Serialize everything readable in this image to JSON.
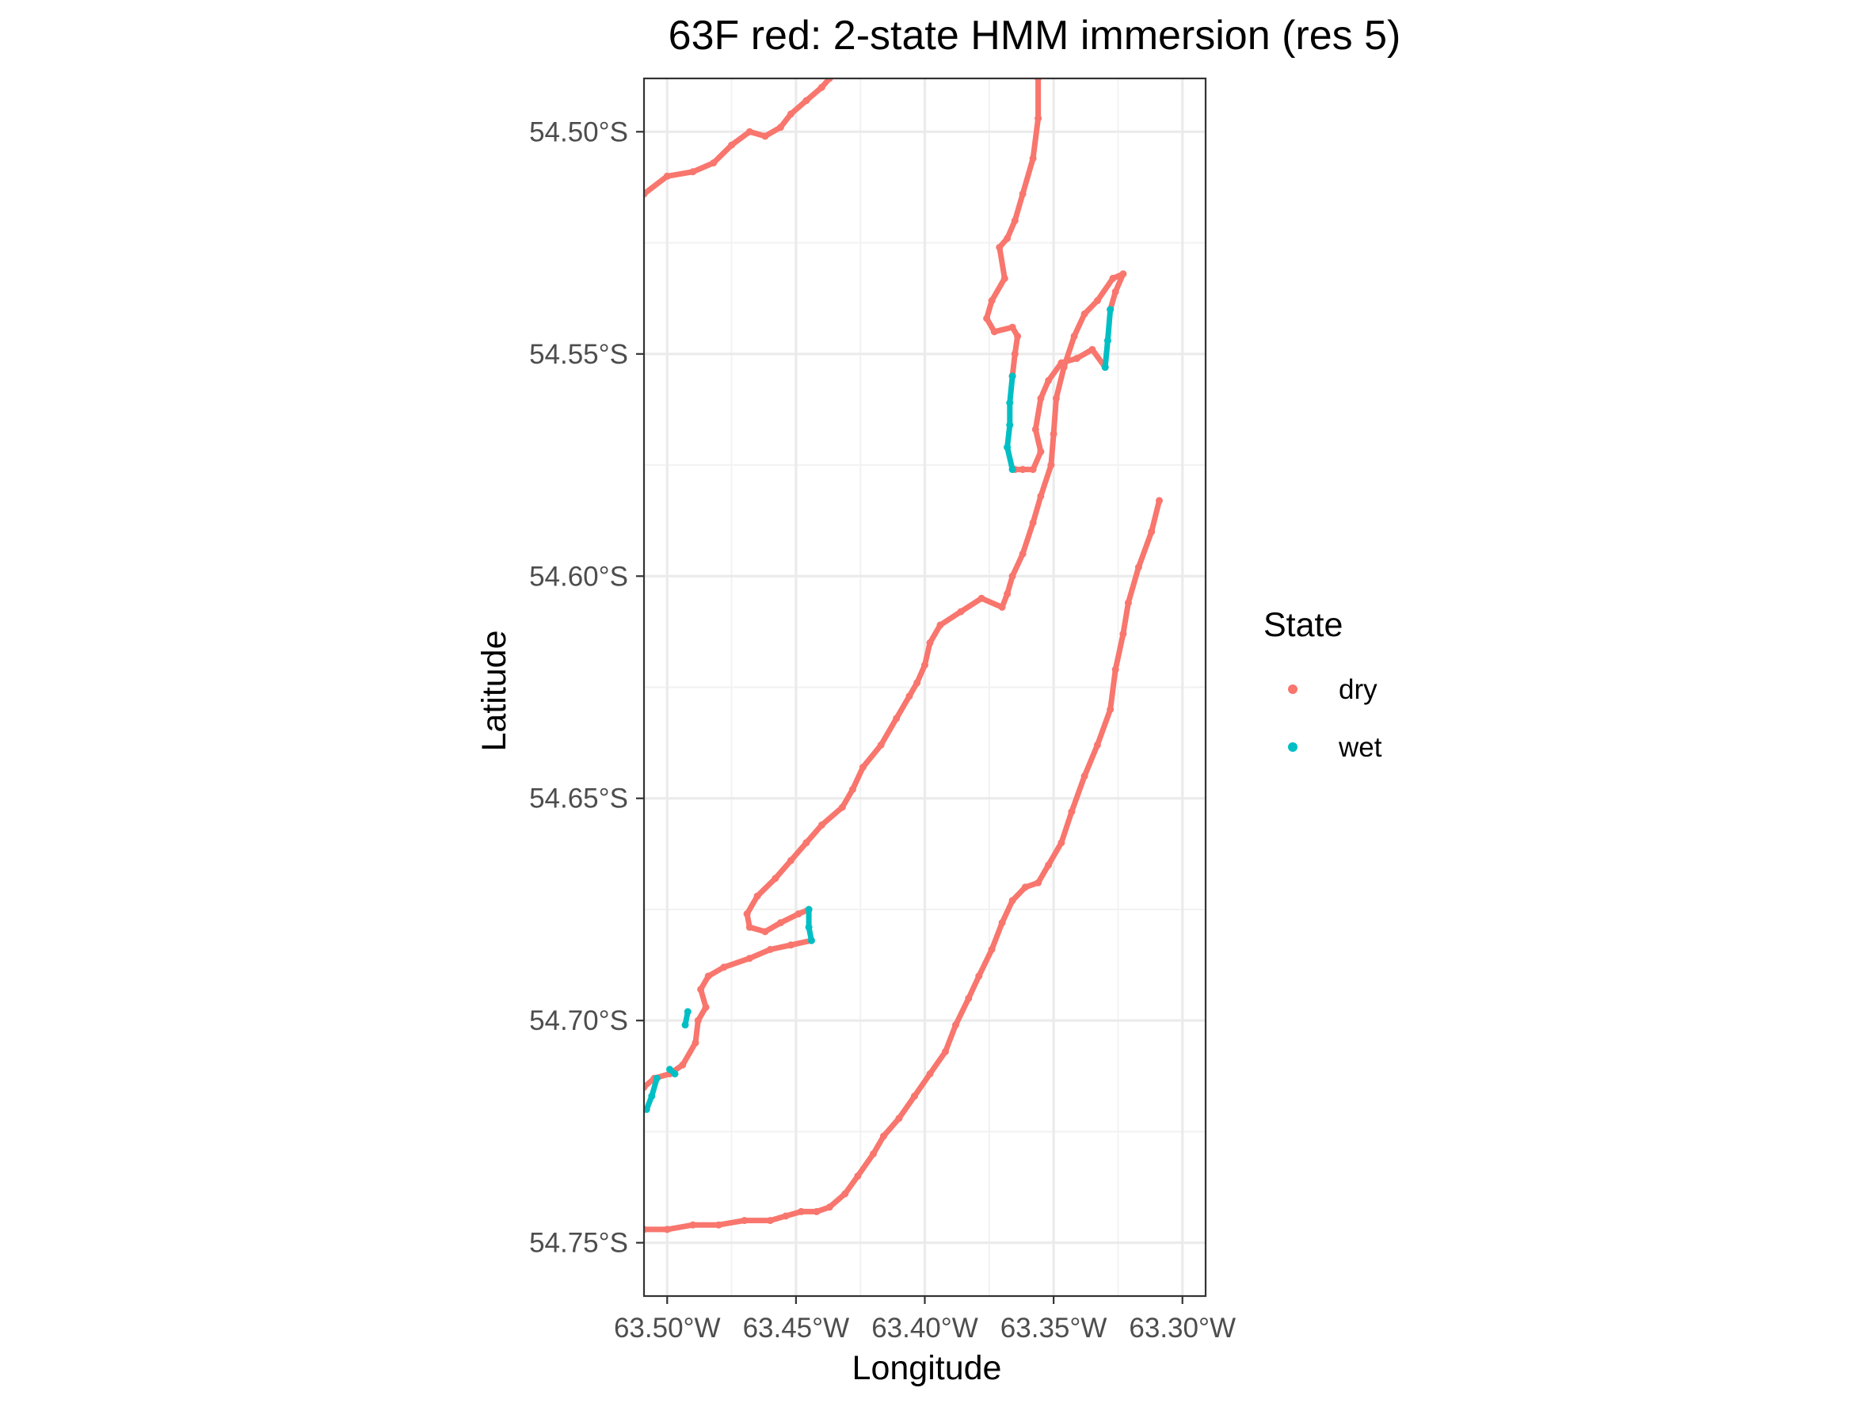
{
  "chart_data": {
    "type": "scatter",
    "title": "63F red: 2-state HMM immersion (res 5)",
    "xlabel": "Longitude",
    "ylabel": "Latitude",
    "xlim": [
      -63.509,
      -63.291
    ],
    "ylim": [
      -54.762,
      -54.488
    ],
    "x_ticks": [
      -63.5,
      -63.45,
      -63.4,
      -63.35,
      -63.3
    ],
    "x_tick_labels": [
      "63.50°W",
      "63.45°W",
      "63.40°W",
      "63.35°W",
      "63.30°W"
    ],
    "y_ticks": [
      -54.5,
      -54.55,
      -54.6,
      -54.65,
      -54.7,
      -54.75
    ],
    "y_tick_labels": [
      "54.50°S",
      "54.55°S",
      "54.60°S",
      "54.65°S",
      "54.70°S",
      "54.75°S"
    ],
    "grid": true,
    "legend": {
      "title": "State",
      "position": "right",
      "entries": [
        {
          "label": "dry",
          "color": "#F8766D"
        },
        {
          "label": "wet",
          "color": "#00BFC4"
        }
      ]
    },
    "series": [
      {
        "name": "dry",
        "color": "#F8766D",
        "segments": [
          [
            [
              -63.509,
              -54.514
            ],
            [
              -63.5,
              -54.51
            ],
            [
              -63.49,
              -54.509
            ],
            [
              -63.482,
              -54.507
            ],
            [
              -63.475,
              -54.503
            ],
            [
              -63.468,
              -54.5
            ],
            [
              -63.462,
              -54.501
            ],
            [
              -63.456,
              -54.499
            ],
            [
              -63.452,
              -54.496
            ],
            [
              -63.446,
              -54.493
            ],
            [
              -63.44,
              -54.49
            ],
            [
              -63.437,
              -54.488
            ]
          ],
          [
            [
              -63.356,
              -54.488
            ],
            [
              -63.356,
              -54.497
            ],
            [
              -63.358,
              -54.506
            ],
            [
              -63.362,
              -54.514
            ],
            [
              -63.365,
              -54.52
            ],
            [
              -63.368,
              -54.524
            ],
            [
              -63.371,
              -54.526
            ],
            [
              -63.369,
              -54.533
            ],
            [
              -63.374,
              -54.538
            ],
            [
              -63.376,
              -54.542
            ],
            [
              -63.373,
              -54.545
            ],
            [
              -63.366,
              -54.544
            ],
            [
              -63.364,
              -54.546
            ],
            [
              -63.365,
              -54.55
            ],
            [
              -63.366,
              -54.555
            ]
          ],
          [
            [
              -63.365,
              -54.576
            ],
            [
              -63.362,
              -54.576
            ],
            [
              -63.358,
              -54.576
            ],
            [
              -63.355,
              -54.572
            ],
            [
              -63.357,
              -54.567
            ],
            [
              -63.355,
              -54.56
            ],
            [
              -63.352,
              -54.556
            ],
            [
              -63.347,
              -54.552
            ],
            [
              -63.341,
              -54.551
            ],
            [
              -63.335,
              -54.549
            ],
            [
              -63.33,
              -54.553
            ]
          ],
          [
            [
              -63.328,
              -54.54
            ],
            [
              -63.326,
              -54.536
            ],
            [
              -63.323,
              -54.532
            ],
            [
              -63.327,
              -54.533
            ],
            [
              -63.333,
              -54.538
            ],
            [
              -63.338,
              -54.541
            ],
            [
              -63.342,
              -54.546
            ],
            [
              -63.346,
              -54.553
            ],
            [
              -63.349,
              -54.56
            ],
            [
              -63.35,
              -54.568
            ],
            [
              -63.351,
              -54.575
            ],
            [
              -63.355,
              -54.582
            ],
            [
              -63.358,
              -54.588
            ],
            [
              -63.362,
              -54.595
            ],
            [
              -63.366,
              -54.6
            ],
            [
              -63.368,
              -54.604
            ],
            [
              -63.37,
              -54.607
            ],
            [
              -63.378,
              -54.605
            ],
            [
              -63.386,
              -54.608
            ],
            [
              -63.394,
              -54.611
            ],
            [
              -63.398,
              -54.615
            ],
            [
              -63.4,
              -54.62
            ],
            [
              -63.403,
              -54.624
            ],
            [
              -63.406,
              -54.627
            ],
            [
              -63.411,
              -54.632
            ],
            [
              -63.417,
              -54.638
            ],
            [
              -63.424,
              -54.643
            ],
            [
              -63.428,
              -54.648
            ],
            [
              -63.432,
              -54.652
            ],
            [
              -63.44,
              -54.656
            ],
            [
              -63.446,
              -54.66
            ],
            [
              -63.452,
              -54.664
            ],
            [
              -63.458,
              -54.668
            ],
            [
              -63.465,
              -54.672
            ],
            [
              -63.469,
              -54.676
            ],
            [
              -63.468,
              -54.679
            ],
            [
              -63.462,
              -54.68
            ],
            [
              -63.456,
              -54.678
            ],
            [
              -63.449,
              -54.676
            ],
            [
              -63.445,
              -54.675
            ]
          ],
          [
            [
              -63.444,
              -54.682
            ],
            [
              -63.452,
              -54.683
            ],
            [
              -63.46,
              -54.684
            ],
            [
              -63.468,
              -54.686
            ],
            [
              -63.478,
              -54.688
            ],
            [
              -63.484,
              -54.69
            ],
            [
              -63.487,
              -54.693
            ],
            [
              -63.485,
              -54.697
            ],
            [
              -63.488,
              -54.7
            ],
            [
              -63.489,
              -54.705
            ],
            [
              -63.494,
              -54.71
            ],
            [
              -63.499,
              -54.712
            ],
            [
              -63.505,
              -54.713
            ],
            [
              -63.509,
              -54.715
            ]
          ],
          [
            [
              -63.309,
              -54.583
            ],
            [
              -63.312,
              -54.59
            ],
            [
              -63.317,
              -54.598
            ],
            [
              -63.321,
              -54.606
            ],
            [
              -63.323,
              -54.613
            ],
            [
              -63.326,
              -54.621
            ],
            [
              -63.328,
              -54.63
            ],
            [
              -63.333,
              -54.638
            ],
            [
              -63.338,
              -54.645
            ],
            [
              -63.343,
              -54.653
            ],
            [
              -63.347,
              -54.66
            ],
            [
              -63.352,
              -54.665
            ],
            [
              -63.356,
              -54.669
            ],
            [
              -63.361,
              -54.67
            ],
            [
              -63.366,
              -54.673
            ],
            [
              -63.37,
              -54.678
            ],
            [
              -63.374,
              -54.684
            ],
            [
              -63.379,
              -54.69
            ],
            [
              -63.383,
              -54.695
            ],
            [
              -63.388,
              -54.701
            ],
            [
              -63.392,
              -54.707
            ],
            [
              -63.398,
              -54.712
            ],
            [
              -63.404,
              -54.717
            ],
            [
              -63.41,
              -54.722
            ],
            [
              -63.416,
              -54.726
            ],
            [
              -63.42,
              -54.73
            ],
            [
              -63.426,
              -54.735
            ],
            [
              -63.431,
              -54.739
            ],
            [
              -63.437,
              -54.742
            ],
            [
              -63.442,
              -54.743
            ],
            [
              -63.448,
              -54.743
            ],
            [
              -63.454,
              -54.744
            ],
            [
              -63.46,
              -54.745
            ],
            [
              -63.47,
              -54.745
            ],
            [
              -63.48,
              -54.746
            ],
            [
              -63.49,
              -54.746
            ],
            [
              -63.5,
              -54.747
            ],
            [
              -63.509,
              -54.747
            ]
          ]
        ]
      },
      {
        "name": "wet",
        "color": "#00BFC4",
        "segments": [
          [
            [
              -63.366,
              -54.555
            ],
            [
              -63.367,
              -54.561
            ],
            [
              -63.367,
              -54.566
            ],
            [
              -63.368,
              -54.571
            ],
            [
              -63.366,
              -54.576
            ]
          ],
          [
            [
              -63.33,
              -54.553
            ],
            [
              -63.329,
              -54.547
            ],
            [
              -63.328,
              -54.54
            ]
          ],
          [
            [
              -63.445,
              -54.675
            ],
            [
              -63.445,
              -54.679
            ],
            [
              -63.444,
              -54.682
            ]
          ],
          [
            [
              -63.508,
              -54.72
            ],
            [
              -63.506,
              -54.717
            ],
            [
              -63.504,
              -54.713
            ]
          ],
          [
            [
              -63.497,
              -54.712
            ],
            [
              -63.499,
              -54.711
            ]
          ],
          [
            [
              -63.493,
              -54.701
            ],
            [
              -63.492,
              -54.698
            ]
          ]
        ]
      }
    ]
  }
}
